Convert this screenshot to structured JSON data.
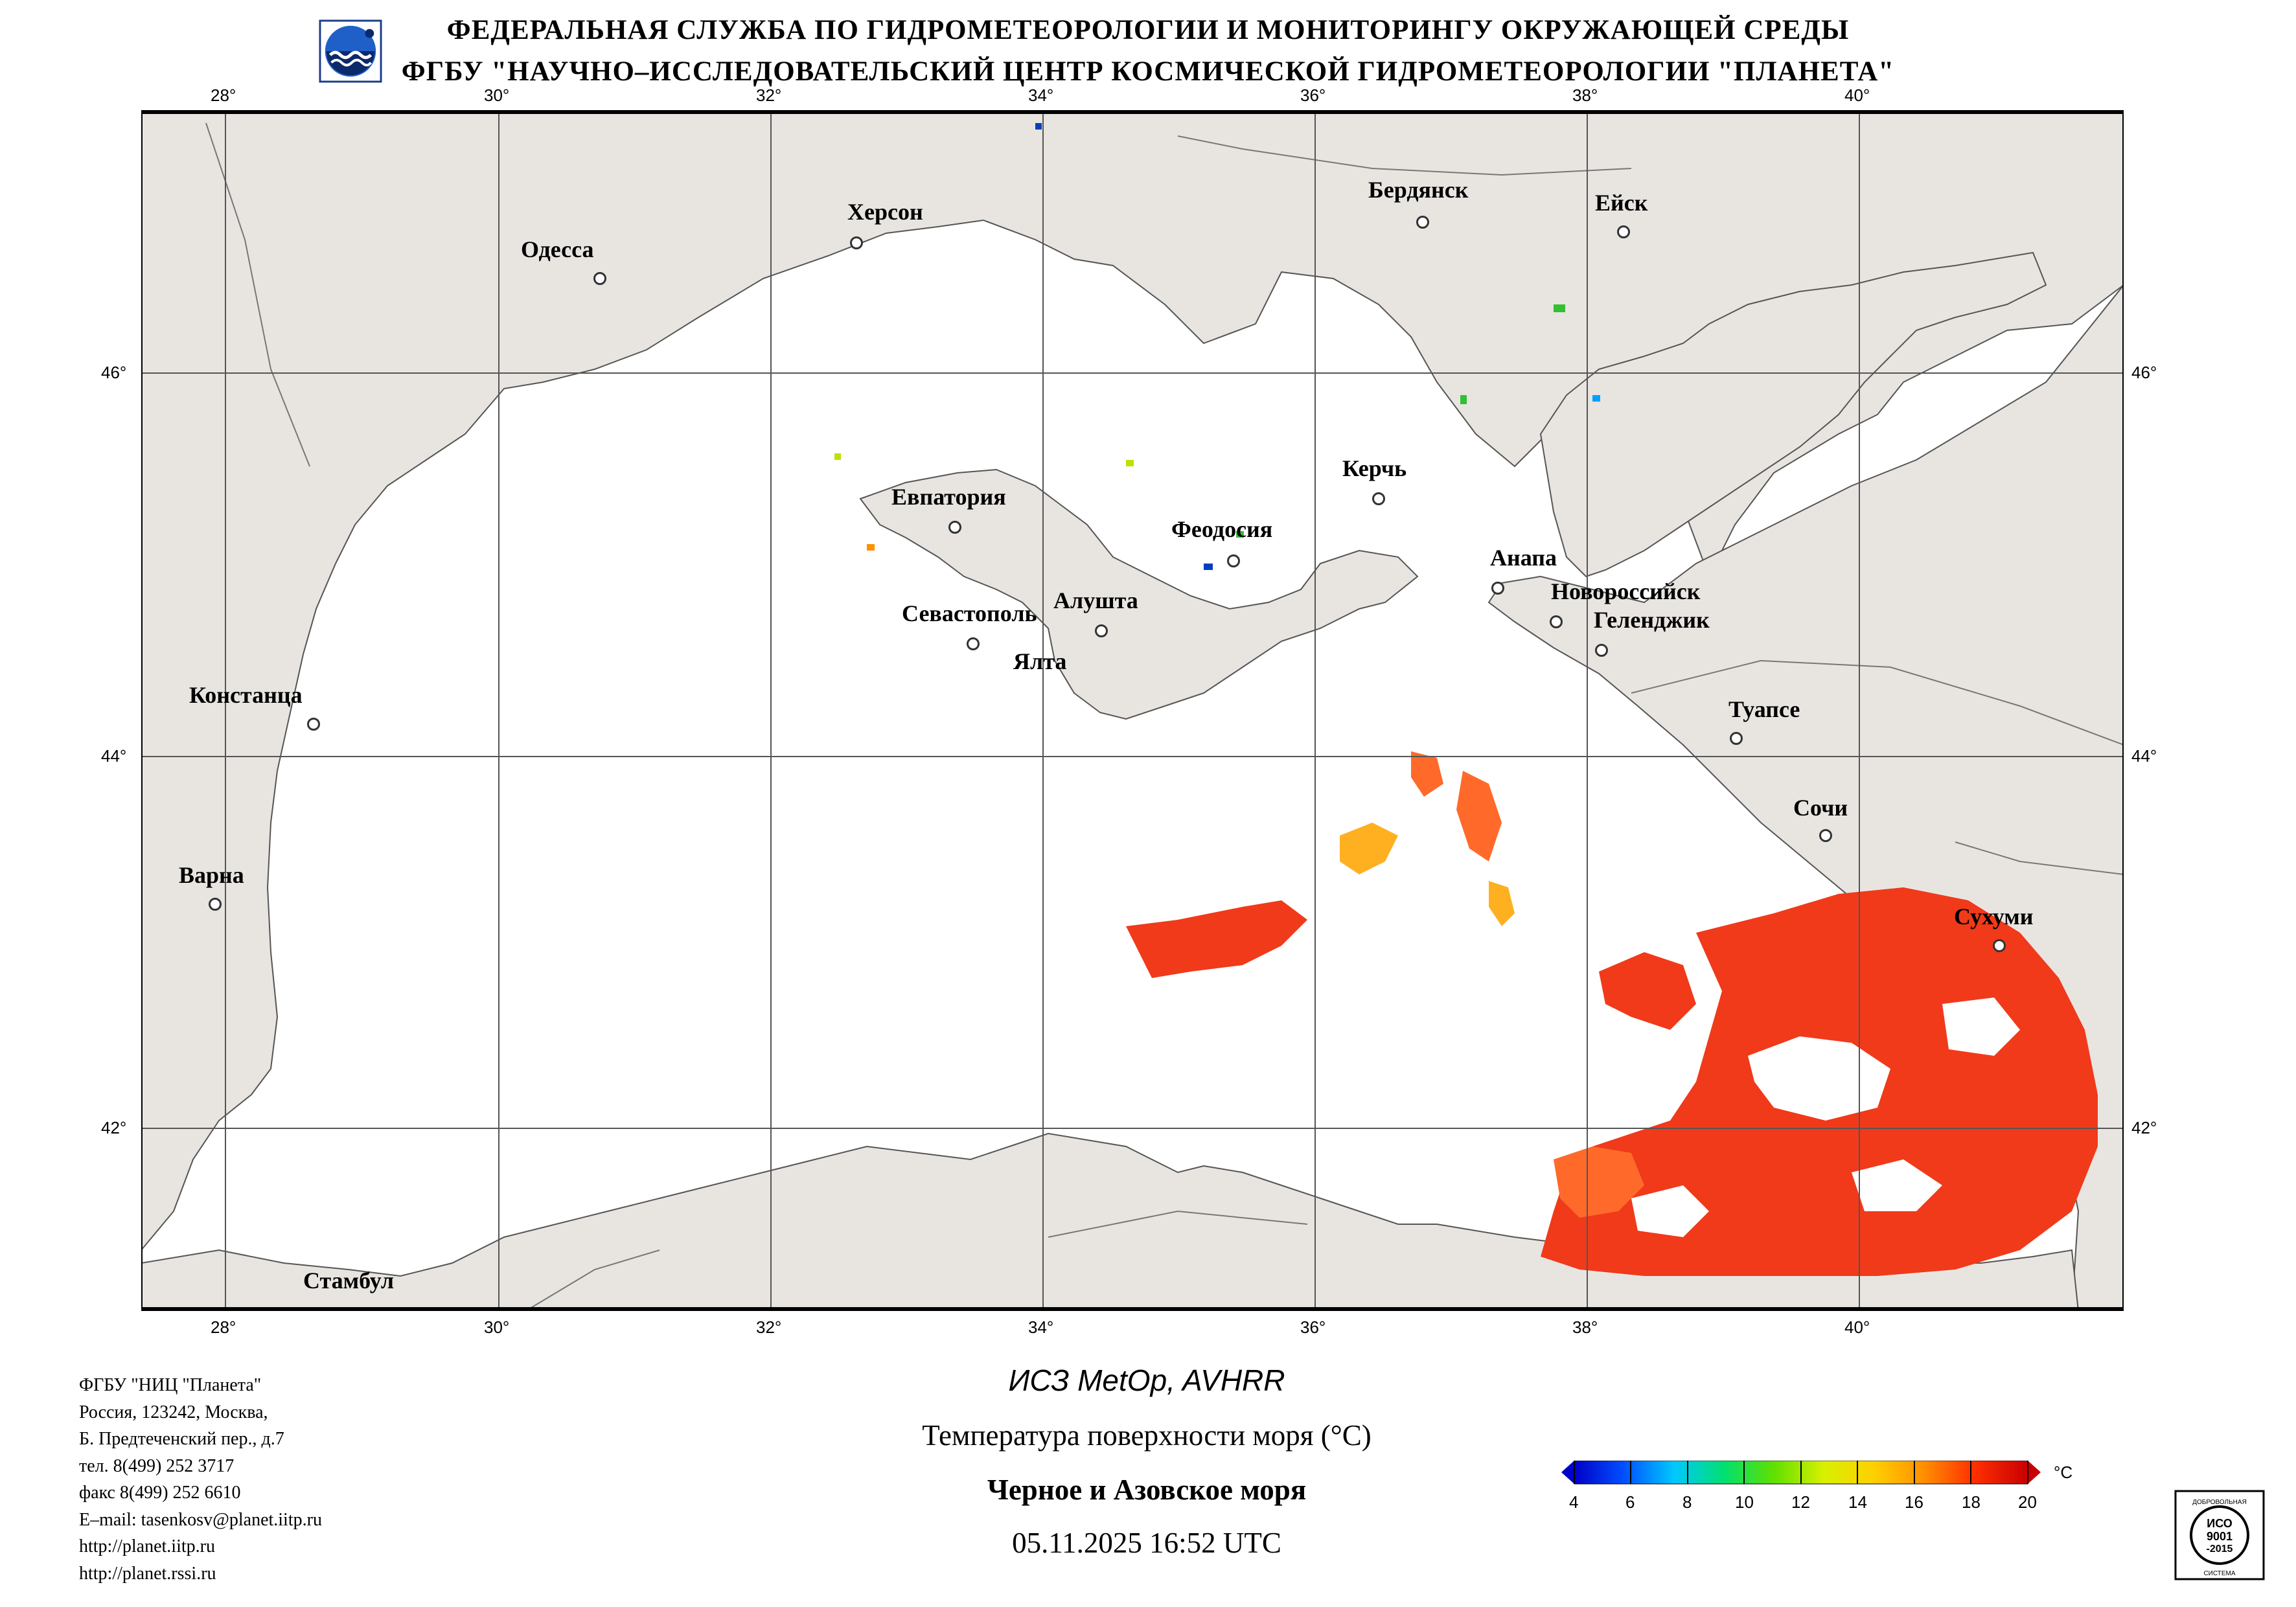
{
  "header": {
    "line1": "ФЕДЕРАЛЬНАЯ СЛУЖБА ПО ГИДРОМЕТЕОРОЛОГИИ И МОНИТОРИНГУ ОКРУЖАЮЩЕЙ СРЕДЫ",
    "line2": "ФГБУ \"НАУЧНО–ИССЛЕДОВАТЕЛЬСКИЙ ЦЕНТР КОСМИЧЕСКОЙ ГИДРОМЕТЕОРОЛОГИИ \"ПЛАНЕТА\""
  },
  "map": {
    "lon_labels": [
      "28°",
      "30°",
      "32°",
      "34°",
      "36°",
      "38°",
      "40°"
    ],
    "lat_labels": [
      "46°",
      "44°",
      "42°"
    ],
    "cities": [
      {
        "name": "Херсон"
      },
      {
        "name": "Одесса"
      },
      {
        "name": "Бердянск"
      },
      {
        "name": "Ейск"
      },
      {
        "name": "Евпатория"
      },
      {
        "name": "Керчь"
      },
      {
        "name": "Феодосия"
      },
      {
        "name": "Анапа"
      },
      {
        "name": "Новороссийск"
      },
      {
        "name": "Геленджик"
      },
      {
        "name": "Севастополь"
      },
      {
        "name": "Алушта"
      },
      {
        "name": "Ялта"
      },
      {
        "name": "Констанца"
      },
      {
        "name": "Туапсе"
      },
      {
        "name": "Сочи"
      },
      {
        "name": "Варна"
      },
      {
        "name": "Сухуми"
      },
      {
        "name": "Стамбул"
      }
    ],
    "colors": {
      "land": "#e8e5e1",
      "sea": "#ffffff",
      "border": "#000000",
      "grid": "#444444"
    }
  },
  "org_info": [
    "ФГБУ \"НИЦ \"Планета\"",
    "Россия, 123242, Москва,",
    "Б. Предтеченский пер., д.7",
    "тел. 8(499) 252 3717",
    "факс 8(499) 252 6610",
    "E–mail: tasenkosv@planet.iitp.ru",
    "http://planet.iitp.ru",
    "http://planet.rssi.ru"
  ],
  "footer": {
    "satellite": "ИСЗ MetOp, AVHRR",
    "product": "Температура поверхности моря (°C)",
    "region": "Черное и Азовское моря",
    "datetime": "05.11.2025 16:52 UTC"
  },
  "colorbar": {
    "unit": "°C",
    "ticks": [
      "4",
      "6",
      "8",
      "10",
      "12",
      "14",
      "16",
      "18",
      "20"
    ],
    "stops": [
      "#0000c8",
      "#0050ff",
      "#00c8ff",
      "#00e070",
      "#60e000",
      "#d8f000",
      "#ffd000",
      "#ff9000",
      "#ff3000",
      "#c80000"
    ]
  },
  "iso_badge": [
    "ДОБРОВОЛЬНАЯ",
    "ИСО",
    "9001",
    "-2015",
    "СИСТЕМА"
  ]
}
